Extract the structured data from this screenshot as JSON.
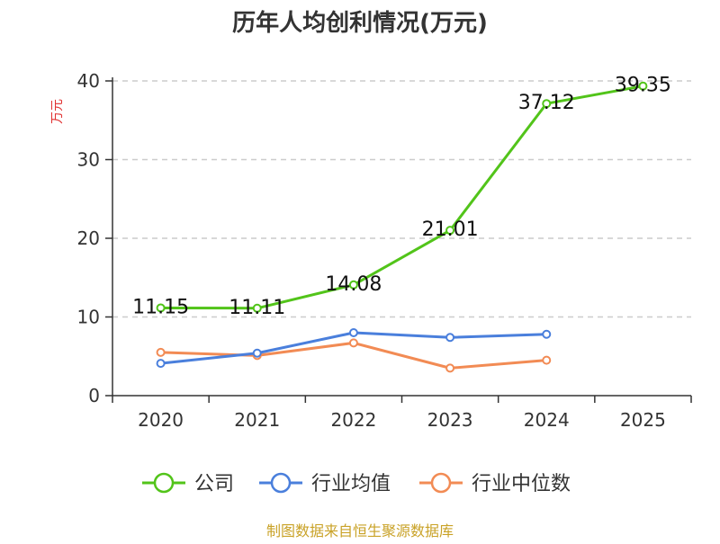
{
  "chart_data": {
    "type": "line",
    "title": "历年人均创利情况(万元)",
    "ylabel": "万元",
    "xlabel": "",
    "ylim": [
      0,
      40
    ],
    "yticks": [
      0,
      10,
      20,
      30,
      40
    ],
    "categories": [
      "2020",
      "2021",
      "2022",
      "2023",
      "2024",
      "2025"
    ],
    "grid": true,
    "legend_position": "bottom",
    "series": [
      {
        "name": "公司",
        "color": "#52c41a",
        "values": [
          11.15,
          11.11,
          14.08,
          21.01,
          37.12,
          39.35
        ],
        "labels": [
          "11.15",
          "11.11",
          "14.08",
          "21.01",
          "37.12",
          "39.35"
        ],
        "show_labels": true
      },
      {
        "name": "行业均值",
        "color": "#4a7fdc",
        "values": [
          4.1,
          5.4,
          8.0,
          7.4,
          7.8,
          null
        ],
        "show_labels": false
      },
      {
        "name": "行业中位数",
        "color": "#f28b54",
        "values": [
          5.5,
          5.1,
          6.7,
          3.5,
          4.5,
          null
        ],
        "show_labels": false
      }
    ],
    "source": "制图数据来自恒生聚源数据库"
  }
}
